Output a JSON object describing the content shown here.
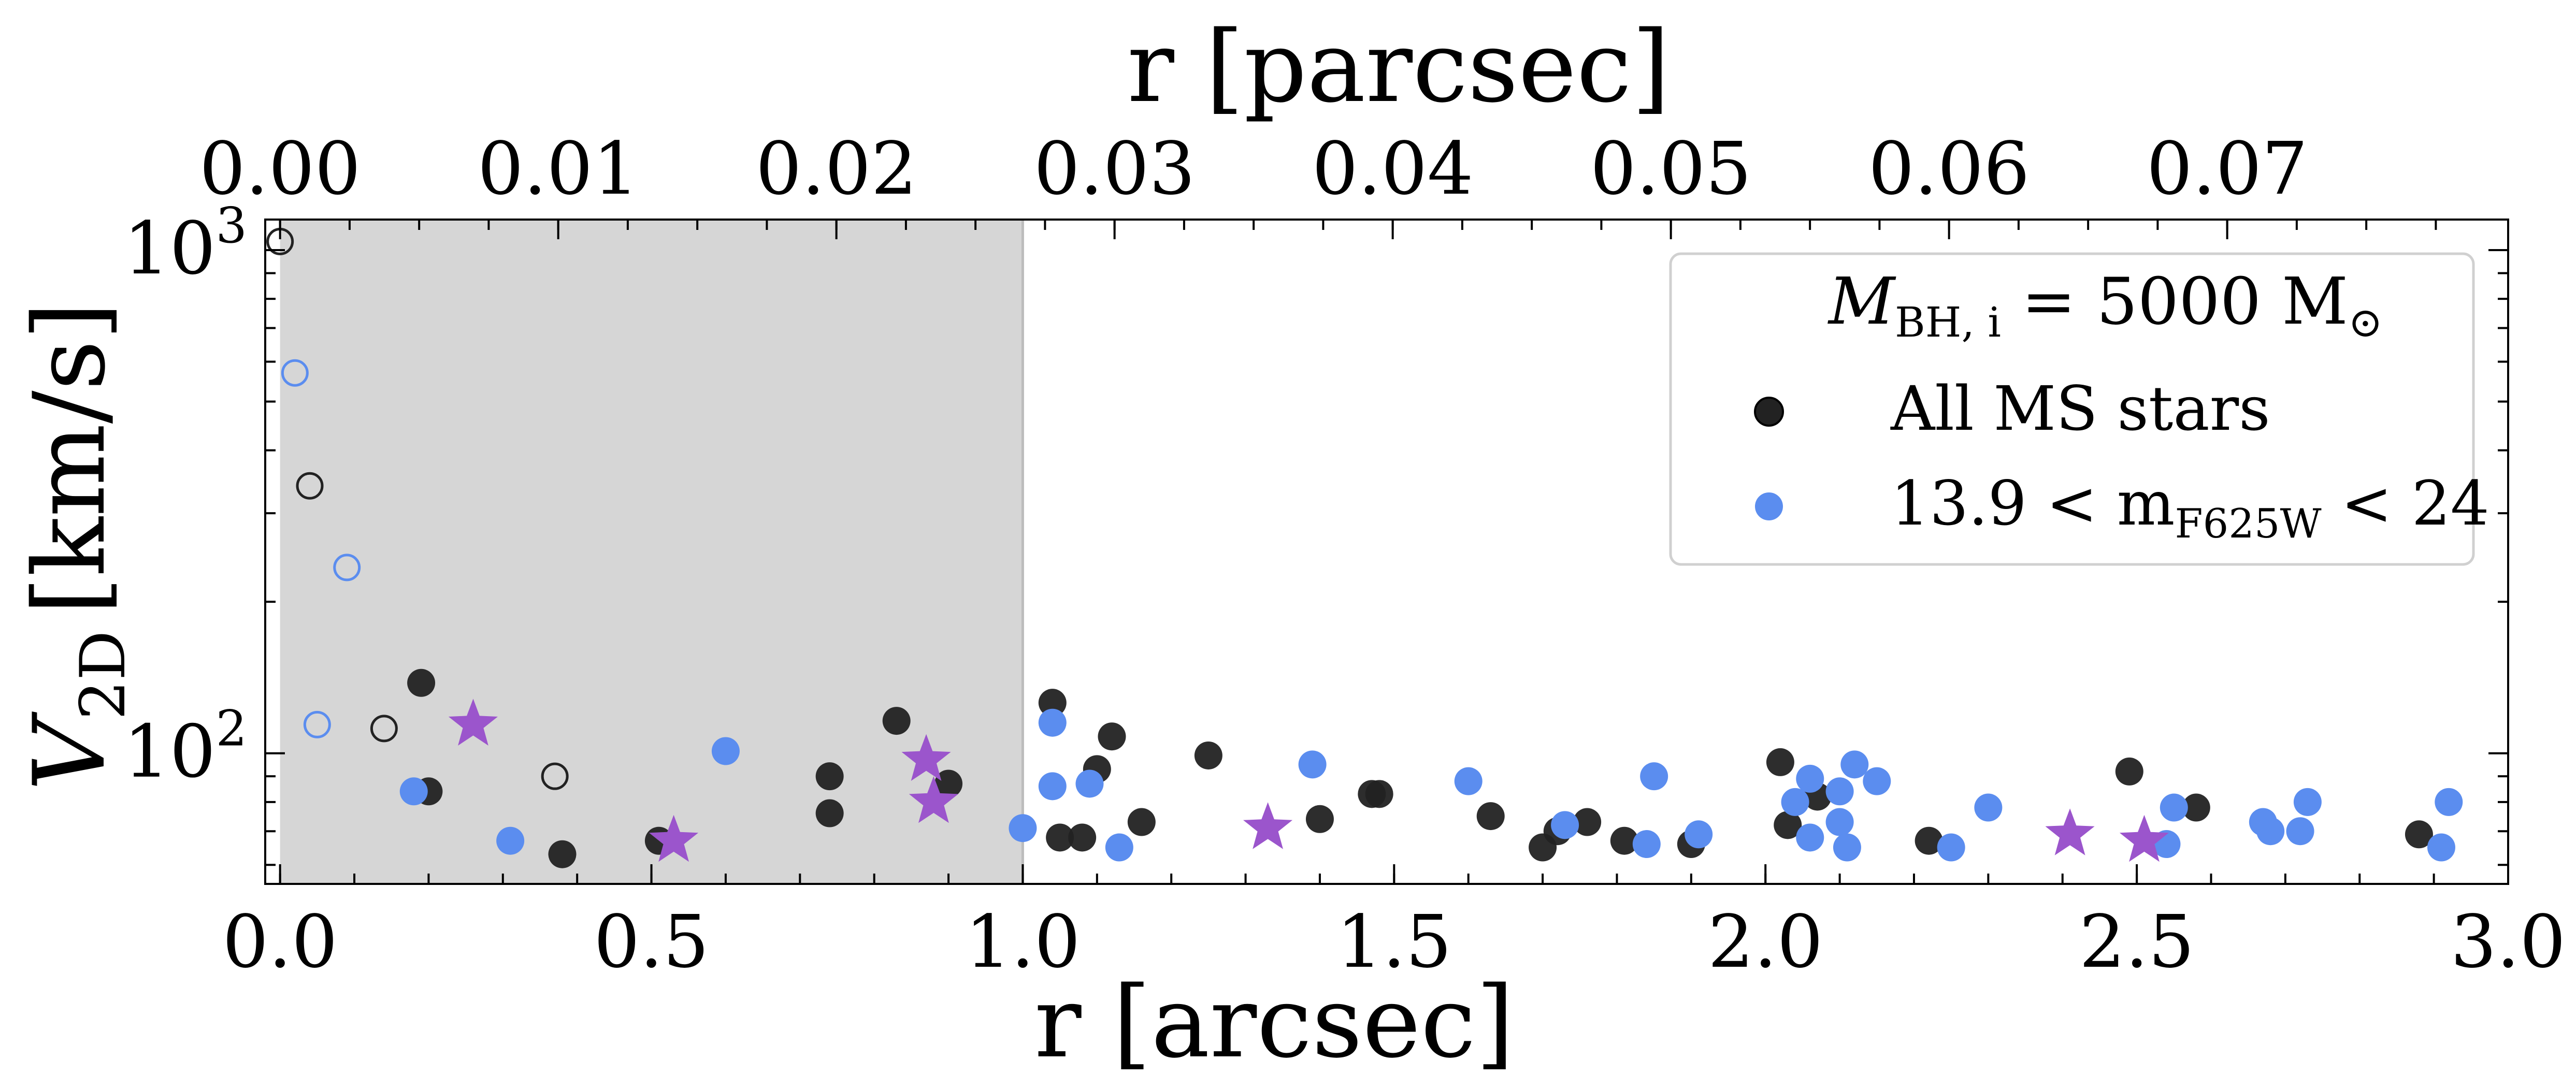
{
  "chart_data": {
    "type": "scatter",
    "title": "",
    "xlabel": "r [arcsec]",
    "xlabel_top": "r [parcsec]",
    "ylabel_main": "V",
    "ylabel_sub": "2D",
    "ylabel_unit": "[km/s]",
    "xlim": [
      -0.02,
      3.0
    ],
    "xlim_top_parsec": [
      -0.000534,
      0.0801
    ],
    "ylim": [
      55,
      1150
    ],
    "yscale": "log",
    "grid": false,
    "shaded_region": {
      "x0": 0.0,
      "x1": 1.0,
      "color": "#d6d6d6"
    },
    "x_ticks": [
      0.0,
      0.5,
      1.0,
      1.5,
      2.0,
      2.5,
      3.0
    ],
    "x_tick_labels": [
      "0.0",
      "0.5",
      "1.0",
      "1.5",
      "2.0",
      "2.5",
      "3.0"
    ],
    "top_ticks_parsec": [
      0.0,
      0.01,
      0.02,
      0.03,
      0.04,
      0.05,
      0.06,
      0.07
    ],
    "top_tick_labels": [
      "0.00",
      "0.01",
      "0.02",
      "0.03",
      "0.04",
      "0.05",
      "0.06",
      "0.07"
    ],
    "y_ticks": [
      100,
      1000
    ],
    "y_tick_base": "10",
    "y_tick_exponents": [
      "2",
      "3"
    ],
    "legend": {
      "title_main": "M",
      "title_sub": "BH, i",
      "title_rest": " = 5000 M",
      "title_sun": "⊙",
      "entries": [
        {
          "label_main": "All MS stars",
          "label_sub": "",
          "label_rest": "",
          "color": "#222222"
        },
        {
          "label_main": "13.9 < m",
          "label_sub": "F625W",
          "label_rest": " < 24",
          "color": "#5b8def"
        }
      ],
      "position": "top-right"
    },
    "series": [
      {
        "marker": "filled-circle",
        "color": "#222222",
        "x": [
          0.19,
          0.2,
          0.38,
          0.51,
          0.74,
          0.74,
          0.83,
          0.9,
          1.04,
          1.05,
          1.08,
          1.1,
          1.12,
          1.16,
          1.25,
          1.4,
          1.47,
          1.48,
          1.63,
          1.7,
          1.72,
          1.76,
          1.81,
          1.9,
          2.02,
          2.03,
          2.07,
          2.22,
          2.49,
          2.58,
          2.88
        ],
        "y": [
          138,
          84,
          63,
          67,
          90,
          76,
          116,
          87,
          126,
          68,
          68,
          93,
          108,
          73,
          99,
          74,
          83,
          83,
          75,
          65,
          70,
          73,
          67,
          66,
          96,
          72,
          82,
          67,
          92,
          78,
          69
        ]
      },
      {
        "marker": "filled-circle",
        "color": "#5b8def",
        "x": [
          0.18,
          0.31,
          0.6,
          1.0,
          1.04,
          1.04,
          1.09,
          1.13,
          1.39,
          1.6,
          1.73,
          1.84,
          1.85,
          1.91,
          2.04,
          2.06,
          2.06,
          2.1,
          2.1,
          2.11,
          2.12,
          2.15,
          2.25,
          2.3,
          2.54,
          2.55,
          2.67,
          2.68,
          2.72,
          2.73,
          2.91,
          2.92
        ],
        "y": [
          84,
          67,
          101,
          71,
          115,
          86,
          87,
          65,
          95,
          88,
          72,
          66,
          90,
          69,
          80,
          89,
          68,
          84,
          73,
          65,
          95,
          88,
          65,
          78,
          66,
          78,
          73,
          70,
          70,
          80,
          65,
          80
        ]
      },
      {
        "marker": "open-circle",
        "color": "#222222",
        "x": [
          0.0,
          0.04,
          0.14,
          0.37
        ],
        "y": [
          1040,
          340,
          112,
          90
        ]
      },
      {
        "marker": "open-circle",
        "color": "#5b8def",
        "x": [
          0.02,
          0.09,
          0.05
        ],
        "y": [
          570,
          234,
          114
        ]
      },
      {
        "marker": "star",
        "color": "#9b55cc",
        "x": [
          0.26,
          0.53,
          0.87,
          0.88,
          1.33,
          2.41,
          2.51
        ],
        "y": [
          114,
          67,
          97,
          80,
          71,
          69,
          67
        ]
      }
    ]
  }
}
